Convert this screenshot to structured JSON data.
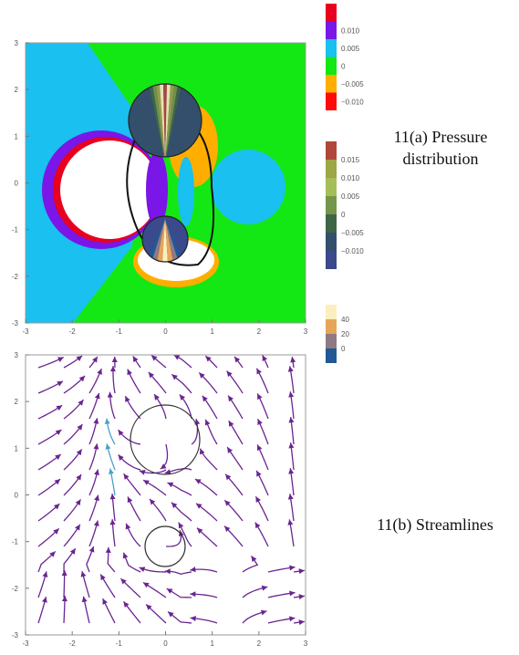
{
  "colors": {
    "p_pos3": "#e8001f",
    "p_pos2": "#7a16e8",
    "p_pos1": "#19c0f0",
    "p_zero": "#14e814",
    "p_neg1": "#ffae00",
    "p_neg2": "#ff0a0a",
    "v_1": "#b0473a",
    "v_2": "#9fa645",
    "v_3": "#a4be58",
    "v_4": "#75964a",
    "v_5": "#3d6647",
    "v_6": "#344f6b",
    "v_7": "#3a4a8c",
    "s_1": "#fbefbf",
    "s_2": "#e7a558",
    "s_3": "#8f7a84",
    "s_4": "#1f5a96",
    "stream": "#6a2490",
    "stream_light": "#4aa0c8"
  },
  "captions": {
    "pressure": [
      "11(a) Pressure",
      "distribution"
    ],
    "streamlines": "11(b) Streamlines"
  },
  "chart_data": [
    {
      "id": "pressure",
      "type": "heatmap",
      "title": "",
      "xlabel": "",
      "ylabel": "",
      "xlim": [
        -3,
        3
      ],
      "ylim": [
        -3,
        3
      ],
      "xticks": [
        -3,
        -2,
        -1,
        0,
        1,
        2,
        3
      ],
      "yticks": [
        -3,
        -2,
        -1,
        0,
        1,
        2,
        3
      ],
      "grid": false,
      "cylinders": [
        {
          "center": [
            0,
            1.25
          ],
          "radius": 0.75
        },
        {
          "center": [
            0,
            -1.1
          ],
          "radius": 0.45
        }
      ],
      "legends": [
        {
          "labels": [
            "",
            "0.010",
            "0.005",
            "0",
            "−0.005",
            "−0.010"
          ],
          "colors": [
            "p_pos3",
            "p_pos2",
            "p_pos1",
            "p_zero",
            "p_neg1",
            "p_neg2"
          ]
        },
        {
          "labels": [
            "0.015",
            "0.010",
            "0.005",
            "0",
            "−0.005",
            "−0.010"
          ],
          "colors": [
            "v_1",
            "v_2",
            "v_3",
            "v_4",
            "v_5",
            "v_6",
            "v_7"
          ]
        },
        {
          "labels": [
            "40",
            "20",
            "0"
          ],
          "colors": [
            "s_1",
            "s_2",
            "s_3",
            "s_4"
          ]
        }
      ]
    },
    {
      "id": "streamlines",
      "type": "scatter",
      "title": "",
      "xlabel": "",
      "ylabel": "",
      "xlim": [
        -3,
        3
      ],
      "ylim": [
        -3,
        3
      ],
      "xticks": [
        -3,
        -2,
        -1,
        0,
        1,
        2,
        3
      ],
      "yticks": [
        -3,
        -2,
        -1,
        0,
        1,
        2,
        3
      ],
      "grid": false,
      "cylinders": [
        {
          "center": [
            0,
            1.25
          ],
          "radius": 0.75
        },
        {
          "center": [
            0,
            -1.1
          ],
          "radius": 0.45
        }
      ]
    }
  ]
}
